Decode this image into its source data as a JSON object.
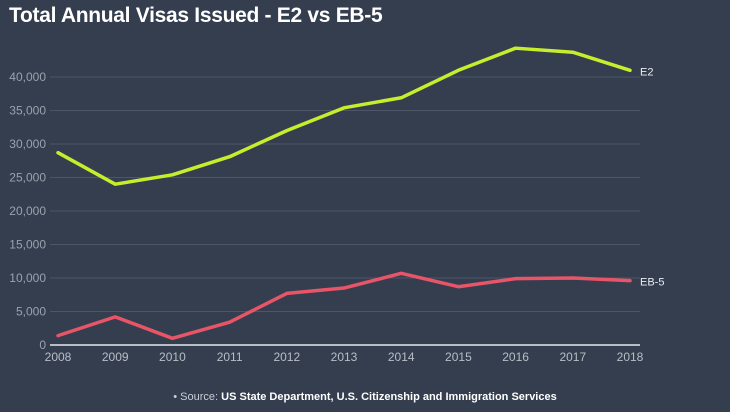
{
  "chart_data": {
    "type": "line",
    "title": "Total Annual Visas Issued - E2 vs EB-5",
    "x": [
      2008,
      2009,
      2010,
      2011,
      2012,
      2013,
      2014,
      2015,
      2016,
      2017,
      2018
    ],
    "series": [
      {
        "name": "E2",
        "color": "#c6ee2c",
        "values": [
          28700,
          24000,
          25400,
          28100,
          32000,
          35400,
          36900,
          41000,
          44300,
          43700,
          41000
        ]
      },
      {
        "name": "EB-5",
        "color": "#e85468",
        "values": [
          1400,
          4200,
          1000,
          3400,
          7700,
          8500,
          10700,
          8700,
          9900,
          10000,
          9600
        ]
      }
    ],
    "ylim": [
      0,
      40000
    ],
    "yticks": [
      "0",
      "5,000",
      "10,000",
      "15,000",
      "20,000",
      "25,000",
      "30,000",
      "35,000",
      "40,000"
    ],
    "xticks": [
      "2008",
      "2009",
      "2010",
      "2011",
      "2012",
      "2013",
      "2014",
      "2015",
      "2016",
      "2017",
      "2018"
    ],
    "grid": true,
    "legend": "inline labels at line ends"
  },
  "source": {
    "prefix": "• Source: ",
    "text": "US State Department, U.S. Citizenship and Immigration Services"
  }
}
